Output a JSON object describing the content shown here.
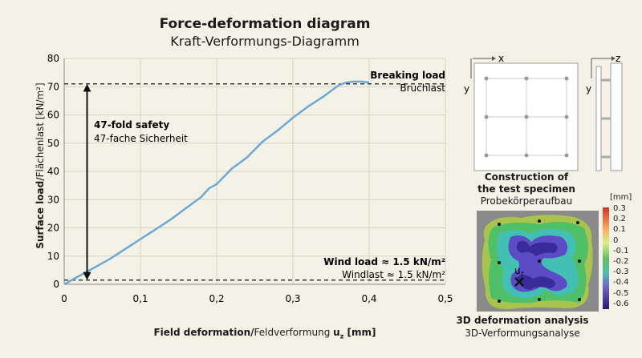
{
  "chart_data": {
    "type": "line",
    "title": "Force-deformation diagram",
    "subtitle": "Kraft-Verformungs-Diagramm",
    "xlabel_bold": "Field deformation/",
    "xlabel_regular": "Feldverformung ",
    "xlabel_symbol": "u",
    "xlabel_sub": "z",
    "xlabel_unit": " [mm]",
    "ylabel_bold": "Surface load/",
    "ylabel_regular": "Flächenlast [kN/m²]",
    "xlim": [
      0,
      0.5
    ],
    "ylim": [
      0,
      80
    ],
    "xticks": [
      "0",
      "0,1",
      "0,2",
      "0,3",
      "0,4",
      "0,5"
    ],
    "yticks": [
      "0",
      "10",
      "20",
      "30",
      "40",
      "50",
      "60",
      "70",
      "80"
    ],
    "series": [
      {
        "color": "#6ea9d3",
        "x": [
          0,
          0.01,
          0.02,
          0.04,
          0.06,
          0.08,
          0.1,
          0.12,
          0.14,
          0.16,
          0.18,
          0.19,
          0.2,
          0.22,
          0.24,
          0.26,
          0.28,
          0.3,
          0.32,
          0.34,
          0.35,
          0.36,
          0.37,
          0.38,
          0.39,
          0.4
        ],
        "y": [
          0,
          1.5,
          3,
          6,
          9,
          12.5,
          16,
          19.5,
          23,
          27,
          31,
          34,
          35.5,
          41,
          45,
          50.5,
          54.5,
          59,
          63,
          66.5,
          68.5,
          70.5,
          71.5,
          71.8,
          71.8,
          71.5
        ]
      }
    ],
    "reference_lines": [
      {
        "y": 71,
        "label_en": "Breaking load",
        "label_de": "Bruchlast"
      },
      {
        "y": 1.5,
        "label_en": "Wind load ≈ 1.5 kN/m²",
        "label_de": "Windlast ≈ 1.5 kN/m²"
      }
    ],
    "annotation": {
      "x": 0.03,
      "y_from": 1.5,
      "y_to": 71,
      "label_en": "47-fold safety",
      "label_de": "47-fache Sicherheit"
    }
  },
  "specimen": {
    "axis_x": "x",
    "axis_y": "y",
    "axis_z": "z",
    "caption_line1": "Construction of",
    "caption_line2": "the test specimen",
    "caption_de": "Probekörperaufbau"
  },
  "deformation": {
    "marker": "u",
    "marker_sub": "z",
    "unit": "[mm]",
    "colorbar_labels": [
      "0.3",
      "0.2",
      "0.1",
      "0",
      "-0.1",
      "-0.2",
      "-0.3",
      "-0.4",
      "-0.5",
      "-0.6"
    ],
    "caption_en": "3D deformation analysis",
    "caption_de": "3D-Verformungsanalyse"
  }
}
